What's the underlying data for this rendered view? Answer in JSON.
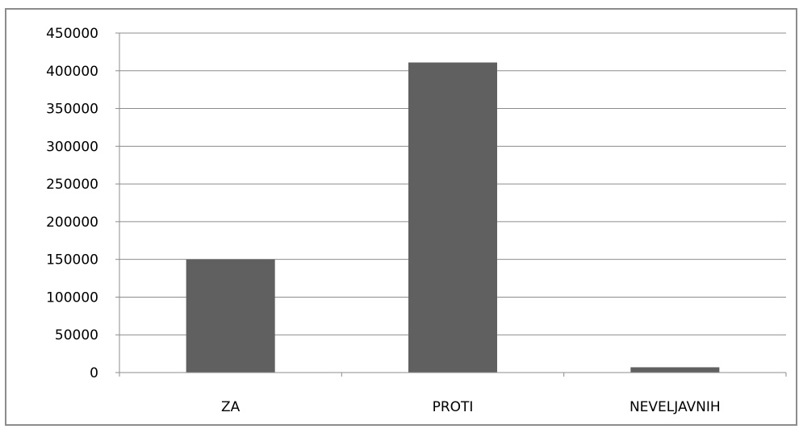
{
  "chart_data": {
    "type": "bar",
    "title": "",
    "xlabel": "",
    "ylabel": "",
    "categories": [
      "ZA",
      "PROTI",
      "NEVELJAVNIH"
    ],
    "values": [
      150000,
      411000,
      7000
    ],
    "ylim": [
      0,
      450000
    ],
    "yticks": [
      "0",
      "50000",
      "100000",
      "150000",
      "200000",
      "250000",
      "300000",
      "350000",
      "400000",
      "450000"
    ],
    "grid": true,
    "legend": "none",
    "bar_color": "#606060",
    "grid_color": "#8c8c8c"
  }
}
